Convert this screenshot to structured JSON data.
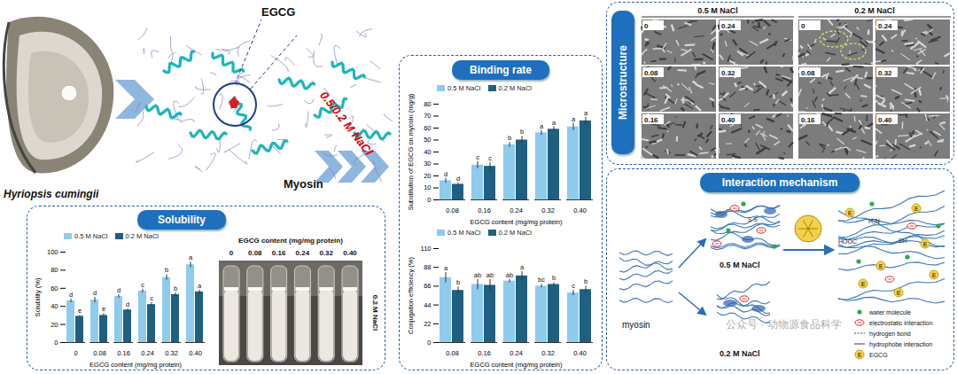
{
  "species": "Hyriopsis cumingii",
  "structure": {
    "ligand": "EGCG",
    "protein": "Myosin",
    "condition": "0.5/0.2 M NaCl"
  },
  "panels": {
    "solubility": "Solubility",
    "binding": "Binding rate",
    "microstructure": "Microstructure",
    "mechanism": "Interaction mechanism"
  },
  "chart_data": [
    {
      "type": "bar",
      "categories": [
        "0",
        "0.08",
        "0.16",
        "0.24",
        "0.32",
        "0.40"
      ],
      "xlabel": "EGCG content (mg/mg protein)",
      "ylabel": "Solubility (%)",
      "ylim": [
        0,
        100
      ],
      "yticks": [
        0,
        20,
        40,
        60,
        80,
        100
      ],
      "legend": "top left",
      "series": [
        {
          "name": "0.5 M NaCl",
          "color": "#8ecbec",
          "values": [
            46,
            47,
            51,
            57,
            72,
            86
          ],
          "errors": [
            2,
            3,
            2,
            2,
            3,
            3
          ],
          "letters": [
            "d",
            "d",
            "d",
            "c",
            "b",
            "a"
          ]
        },
        {
          "name": "0.2 M NaCl",
          "color": "#1f5f80",
          "values": [
            29,
            30,
            36,
            42,
            53,
            56
          ],
          "errors": [
            1,
            2,
            1,
            2,
            2,
            2
          ],
          "letters": [
            "e",
            "e",
            "d",
            "c",
            "b",
            "a"
          ]
        }
      ]
    },
    {
      "type": "bar",
      "categories": [
        "0.08",
        "0.16",
        "0.24",
        "0.32",
        "0.40"
      ],
      "xlabel": "EGCG content (mg/mg protein)",
      "ylabel": "Substitution of EGCG on myosin (mg/g)",
      "ylim": [
        0,
        80
      ],
      "yticks": [
        0,
        10,
        20,
        30,
        40,
        50,
        60,
        70,
        80
      ],
      "legend": "top left",
      "series": [
        {
          "name": "0.5 M NaCl",
          "color": "#8ecbec",
          "values": [
            16,
            29,
            46,
            56,
            61
          ],
          "errors": [
            2,
            3,
            2,
            2,
            3
          ],
          "letters": [
            "d",
            "c",
            "b",
            "a",
            "a"
          ]
        },
        {
          "name": "0.2 M NaCl",
          "color": "#1f5f80",
          "values": [
            13,
            28,
            50,
            59,
            66
          ],
          "errors": [
            1,
            3,
            3,
            2,
            3
          ],
          "letters": [
            "d",
            "c",
            "b",
            "a",
            "a"
          ]
        }
      ]
    },
    {
      "type": "bar",
      "categories": [
        "0.08",
        "0.16",
        "0.24",
        "0.32",
        "0.40"
      ],
      "xlabel": "EGCG content (mg/mg protein)",
      "ylabel": "Conjugation efficiency (%)",
      "ylim": [
        0,
        110
      ],
      "yticks": [
        0,
        22,
        44,
        66,
        88,
        110
      ],
      "legend": "top left",
      "series": [
        {
          "name": "0.5 M NaCl",
          "color": "#8ecbec",
          "values": [
            76,
            68,
            72,
            66,
            58
          ],
          "errors": [
            6,
            6,
            2,
            2,
            3
          ],
          "letters": [
            "a",
            "ab",
            "ab",
            "bc",
            "c"
          ]
        },
        {
          "name": "0.2 M NaCl",
          "color": "#1f5f80",
          "values": [
            61,
            67,
            78,
            68,
            62
          ],
          "errors": [
            4,
            7,
            5,
            2,
            4
          ],
          "letters": [
            "b",
            "ab",
            "a",
            "b",
            "b"
          ]
        }
      ]
    }
  ],
  "tube_photo": {
    "title": "EGCG content (mg/mg protein)",
    "labels": [
      "0",
      "0.08",
      "0.16",
      "0.24",
      "0.32",
      "0.40"
    ],
    "side_label": "0.2 M NaCl"
  },
  "microstructure": [
    {
      "title": "0.5 M NaCl",
      "labels": [
        "0",
        "0.08",
        "0.16",
        "0.24",
        "0.32",
        "0.40"
      ]
    },
    {
      "title": "0.2 M NaCl",
      "labels": [
        "0",
        "0.08",
        "0.16",
        "0.24",
        "0.32",
        "0.40"
      ]
    }
  ],
  "mechanism": {
    "start": "myosin",
    "high_salt": "0.5 M NaCl",
    "low_salt": "0.2 M NaCl",
    "bond": "S-S",
    "groups": [
      "HOOC",
      "H₂N",
      "SH"
    ],
    "symbol": "E",
    "legend": [
      {
        "label": "water molecule",
        "marker": "dot"
      },
      {
        "label": "electrostatic interaction",
        "marker": "ellipse"
      },
      {
        "label": "hydrogen bond",
        "marker": "dashed"
      },
      {
        "label": "hydrophobe interaction",
        "marker": "line"
      },
      {
        "label": "EGCG",
        "marker": "E"
      }
    ]
  },
  "watermark": "公众号 · 动物源食品科学"
}
